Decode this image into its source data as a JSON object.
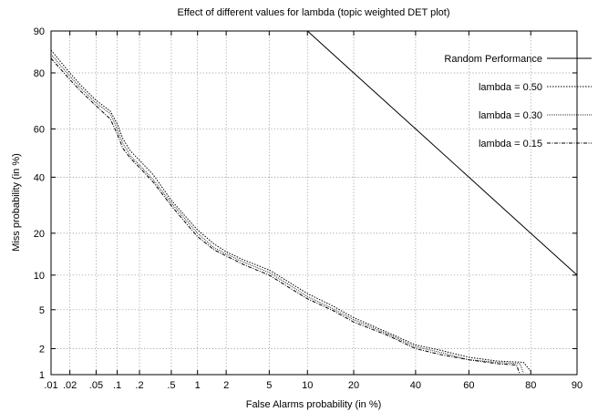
{
  "chart_data": {
    "type": "line",
    "title": "Effect of different values for lambda (topic weighted DET plot)",
    "xlabel": "False Alarms probability (in %)",
    "ylabel": "Miss probability (in %)",
    "scale": "normal-deviate (probit) on both axes",
    "xlim": [
      0.01,
      90
    ],
    "ylim": [
      1,
      90
    ],
    "x_ticks": [
      ".01",
      ".02",
      ".05",
      ".1",
      ".2",
      ".5",
      "1",
      "2",
      "5",
      "10",
      "20",
      "40",
      "60",
      "80",
      "90"
    ],
    "y_ticks": [
      "1",
      "2",
      "5",
      "10",
      "20",
      "40",
      "60",
      "80",
      "90"
    ],
    "grid": true,
    "legend_position": "top-right",
    "series": [
      {
        "name": "Random Performance",
        "dash": "solid",
        "points": [
          [
            10,
            90
          ],
          [
            20,
            80
          ],
          [
            40,
            60
          ],
          [
            60,
            40
          ],
          [
            80,
            20
          ],
          [
            90,
            10
          ]
        ]
      },
      {
        "name": "lambda = 0.50",
        "dash": "dotted",
        "points": [
          [
            0.01,
            86
          ],
          [
            0.02,
            80
          ],
          [
            0.03,
            76
          ],
          [
            0.05,
            71
          ],
          [
            0.08,
            67
          ],
          [
            0.1,
            62
          ],
          [
            0.12,
            56
          ],
          [
            0.15,
            51
          ],
          [
            0.2,
            47
          ],
          [
            0.3,
            41
          ],
          [
            0.5,
            31
          ],
          [
            0.8,
            24
          ],
          [
            1,
            21
          ],
          [
            1.5,
            17
          ],
          [
            2,
            15
          ],
          [
            3,
            13
          ],
          [
            5,
            11
          ],
          [
            8,
            8.2
          ],
          [
            10,
            7
          ],
          [
            15,
            5.4
          ],
          [
            20,
            4.2
          ],
          [
            30,
            3
          ],
          [
            40,
            2.2
          ],
          [
            50,
            1.9
          ],
          [
            60,
            1.6
          ],
          [
            70,
            1.45
          ],
          [
            78,
            1.4
          ],
          [
            80,
            1.1
          ]
        ]
      },
      {
        "name": "lambda = 0.30",
        "dash": "densely-dotted",
        "points": [
          [
            0.01,
            85
          ],
          [
            0.02,
            79
          ],
          [
            0.03,
            75
          ],
          [
            0.05,
            70
          ],
          [
            0.08,
            66
          ],
          [
            0.1,
            60
          ],
          [
            0.12,
            54
          ],
          [
            0.15,
            49
          ],
          [
            0.2,
            45
          ],
          [
            0.3,
            39
          ],
          [
            0.5,
            30
          ],
          [
            0.8,
            23
          ],
          [
            1,
            20
          ],
          [
            1.5,
            16
          ],
          [
            2,
            14.5
          ],
          [
            3,
            12.5
          ],
          [
            5,
            10.5
          ],
          [
            8,
            7.8
          ],
          [
            10,
            6.6
          ],
          [
            15,
            5.1
          ],
          [
            20,
            4
          ],
          [
            30,
            2.9
          ],
          [
            40,
            2.1
          ],
          [
            50,
            1.8
          ],
          [
            60,
            1.5
          ],
          [
            70,
            1.4
          ],
          [
            77,
            1.35
          ],
          [
            78,
            1.05
          ]
        ]
      },
      {
        "name": "lambda = 0.15",
        "dash": "dash-dot",
        "points": [
          [
            0.01,
            84
          ],
          [
            0.02,
            78
          ],
          [
            0.03,
            74
          ],
          [
            0.05,
            69
          ],
          [
            0.08,
            64
          ],
          [
            0.1,
            58
          ],
          [
            0.12,
            52
          ],
          [
            0.15,
            48
          ],
          [
            0.2,
            44
          ],
          [
            0.3,
            38
          ],
          [
            0.5,
            29
          ],
          [
            0.8,
            22
          ],
          [
            1,
            19
          ],
          [
            1.5,
            15.5
          ],
          [
            2,
            14
          ],
          [
            3,
            12
          ],
          [
            5,
            10
          ],
          [
            8,
            7.4
          ],
          [
            10,
            6.3
          ],
          [
            15,
            4.9
          ],
          [
            20,
            3.8
          ],
          [
            30,
            2.8
          ],
          [
            40,
            2
          ],
          [
            50,
            1.7
          ],
          [
            60,
            1.5
          ],
          [
            70,
            1.35
          ],
          [
            76,
            1.3
          ],
          [
            77,
            1.0
          ]
        ]
      }
    ]
  }
}
